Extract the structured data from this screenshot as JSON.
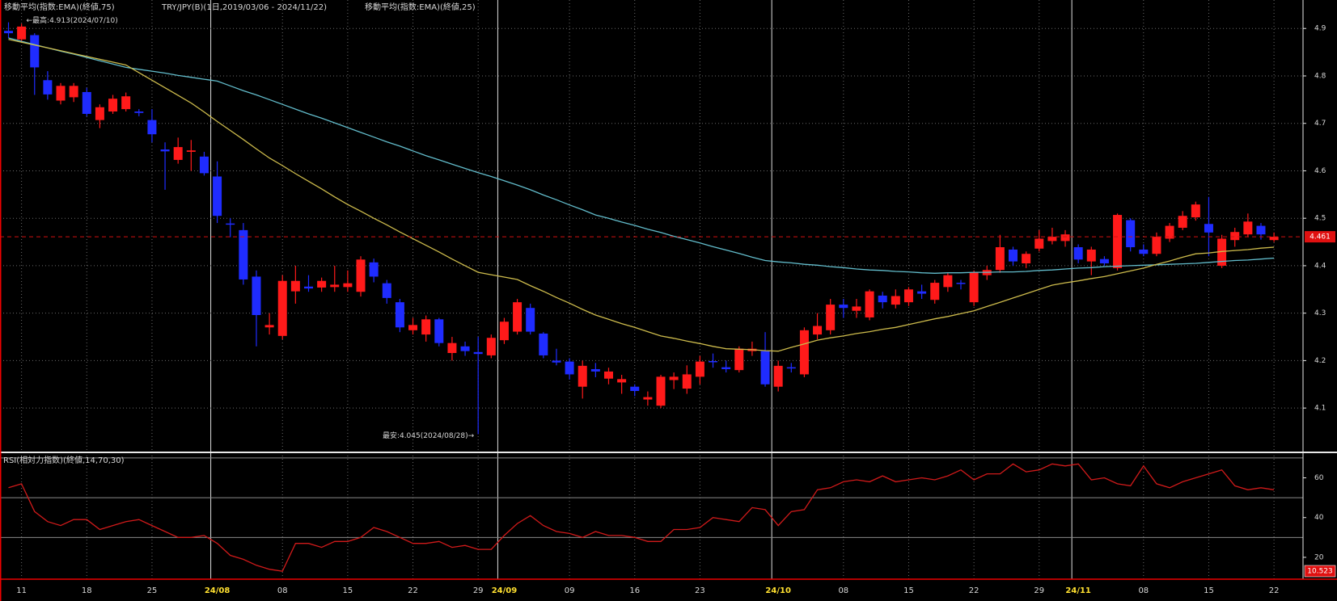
{
  "chart_data": [
    {
      "type": "candlestick",
      "title": "TRY/JPY(B)(1日,2019/03/06 - 2024/11/22)",
      "categories": [
        null,
        "11",
        null,
        null,
        null,
        null,
        "18",
        null,
        null,
        null,
        null,
        "25",
        null,
        null,
        null,
        null,
        "24/08",
        null,
        null,
        null,
        null,
        "08",
        null,
        null,
        null,
        null,
        "15",
        null,
        null,
        null,
        null,
        "22",
        null,
        null,
        null,
        null,
        "29",
        null,
        "24/09",
        null,
        null,
        null,
        null,
        "09",
        null,
        null,
        null,
        null,
        "16",
        null,
        null,
        null,
        null,
        "23",
        null,
        null,
        null,
        null,
        null,
        "24/10",
        null,
        null,
        null,
        null,
        "08",
        null,
        null,
        null,
        null,
        "15",
        null,
        null,
        null,
        null,
        "22",
        null,
        null,
        null,
        null,
        "29",
        null,
        null,
        "24/11",
        null,
        null,
        null,
        null,
        "08",
        null,
        null,
        null,
        null,
        "15",
        null,
        null,
        null,
        null,
        "22"
      ],
      "open": [
        4.895,
        4.877,
        4.886,
        4.791,
        4.748,
        4.755,
        4.766,
        4.707,
        4.725,
        4.73,
        4.725,
        4.707,
        4.645,
        4.623,
        4.64,
        4.63,
        4.588,
        4.489,
        4.475,
        4.377,
        4.27,
        4.252,
        4.346,
        4.356,
        4.354,
        4.355,
        4.355,
        4.345,
        4.407,
        4.363,
        4.323,
        4.264,
        4.255,
        4.287,
        4.216,
        4.23,
        4.218,
        4.211,
        4.243,
        4.261,
        4.311,
        4.257,
        4.2,
        4.198,
        4.145,
        4.182,
        4.162,
        4.154,
        4.145,
        4.118,
        4.105,
        4.159,
        4.141,
        4.166,
        4.199,
        4.186,
        4.18,
        4.22,
        4.22,
        4.145,
        4.186,
        4.171,
        4.255,
        4.264,
        4.318,
        4.305,
        4.291,
        4.337,
        4.318,
        4.323,
        4.346,
        4.328,
        4.355,
        4.364,
        4.323,
        4.38,
        4.391,
        4.434,
        4.405,
        4.436,
        4.452,
        4.452,
        4.439,
        4.409,
        4.414,
        4.395,
        4.496,
        4.434,
        4.425,
        4.457,
        4.48,
        4.502,
        4.488,
        4.4,
        4.454,
        4.466,
        4.484,
        4.454
      ],
      "high": [
        4.913,
        4.91,
        4.89,
        4.81,
        4.785,
        4.785,
        4.775,
        4.74,
        4.76,
        4.765,
        4.73,
        4.73,
        4.66,
        4.67,
        4.665,
        4.64,
        4.62,
        4.5,
        4.49,
        4.39,
        4.3,
        4.38,
        4.4,
        4.38,
        4.375,
        4.4,
        4.39,
        4.42,
        4.415,
        4.37,
        4.33,
        4.29,
        4.295,
        4.29,
        4.25,
        4.24,
        4.25,
        4.255,
        4.29,
        4.33,
        4.32,
        4.26,
        4.225,
        4.205,
        4.2,
        4.195,
        4.185,
        4.17,
        4.15,
        4.135,
        4.17,
        4.175,
        4.19,
        4.21,
        4.215,
        4.2,
        4.23,
        4.24,
        4.26,
        4.2,
        4.195,
        4.27,
        4.3,
        4.33,
        4.33,
        4.33,
        4.35,
        4.345,
        4.35,
        4.355,
        4.36,
        4.37,
        4.385,
        4.37,
        4.39,
        4.4,
        4.465,
        4.44,
        4.43,
        4.475,
        4.48,
        4.475,
        4.445,
        4.44,
        4.42,
        4.51,
        4.5,
        4.445,
        4.47,
        4.49,
        4.515,
        4.535,
        4.545,
        4.465,
        4.48,
        4.51,
        4.49,
        4.47
      ],
      "low": [
        4.88,
        4.87,
        4.76,
        4.75,
        4.74,
        4.745,
        4.715,
        4.69,
        4.72,
        4.725,
        4.715,
        4.66,
        4.56,
        4.615,
        4.6,
        4.59,
        4.49,
        4.46,
        4.36,
        4.23,
        4.255,
        4.245,
        4.32,
        4.345,
        4.345,
        4.345,
        4.345,
        4.335,
        4.365,
        4.32,
        4.26,
        4.255,
        4.24,
        4.23,
        4.2,
        4.21,
        4.045,
        4.205,
        4.235,
        4.255,
        4.255,
        4.205,
        4.19,
        4.16,
        4.12,
        4.165,
        4.15,
        4.13,
        4.125,
        4.105,
        4.1,
        4.14,
        4.13,
        4.15,
        4.185,
        4.175,
        4.175,
        4.21,
        4.145,
        4.135,
        4.175,
        4.165,
        4.245,
        4.255,
        4.29,
        4.29,
        4.285,
        4.31,
        4.31,
        4.315,
        4.33,
        4.32,
        4.345,
        4.35,
        4.315,
        4.37,
        4.385,
        4.4,
        4.395,
        4.43,
        4.445,
        4.44,
        4.405,
        4.38,
        4.4,
        4.39,
        4.43,
        4.42,
        4.42,
        4.45,
        4.475,
        4.495,
        4.42,
        4.395,
        4.44,
        4.46,
        4.455,
        4.45
      ],
      "close": [
        4.89,
        4.904,
        4.818,
        4.761,
        4.779,
        4.779,
        4.72,
        4.734,
        4.752,
        4.757,
        4.722,
        4.677,
        4.641,
        4.65,
        4.643,
        4.595,
        4.505,
        4.487,
        4.371,
        4.296,
        4.275,
        4.368,
        4.368,
        4.352,
        4.368,
        4.36,
        4.363,
        4.413,
        4.377,
        4.332,
        4.27,
        4.275,
        4.287,
        4.237,
        4.237,
        4.22,
        4.214,
        4.248,
        4.282,
        4.323,
        4.261,
        4.211,
        4.196,
        4.171,
        4.189,
        4.177,
        4.177,
        4.161,
        4.136,
        4.123,
        4.166,
        4.166,
        4.171,
        4.198,
        4.198,
        4.182,
        4.225,
        4.225,
        4.15,
        4.189,
        4.184,
        4.264,
        4.273,
        4.318,
        4.311,
        4.314,
        4.346,
        4.323,
        4.336,
        4.35,
        4.341,
        4.364,
        4.38,
        4.362,
        4.386,
        4.391,
        4.439,
        4.409,
        4.425,
        4.457,
        4.461,
        4.466,
        4.413,
        4.434,
        4.405,
        4.507,
        4.439,
        4.425,
        4.461,
        4.484,
        4.505,
        4.529,
        4.47,
        4.457,
        4.471,
        4.493,
        4.466,
        4.461
      ],
      "up_color": "#ff1a1a",
      "down_color": "#1f2cff",
      "series": [
        {
          "name": "移動平均(指数:EMA)(終値,75)",
          "color": "#62bccb",
          "values": [
            4.88,
            4.873,
            4.866,
            4.859,
            4.852,
            4.846,
            4.839,
            4.832,
            4.825,
            4.818,
            4.814,
            4.81,
            4.806,
            4.801,
            4.797,
            4.793,
            4.789,
            4.779,
            4.769,
            4.76,
            4.75,
            4.74,
            4.73,
            4.72,
            4.711,
            4.701,
            4.691,
            4.681,
            4.671,
            4.661,
            4.652,
            4.642,
            4.632,
            4.623,
            4.614,
            4.605,
            4.596,
            4.588,
            4.579,
            4.57,
            4.56,
            4.549,
            4.539,
            4.528,
            4.518,
            4.507,
            4.5,
            4.492,
            4.485,
            4.477,
            4.47,
            4.462,
            4.455,
            4.448,
            4.44,
            4.433,
            4.426,
            4.418,
            4.411,
            4.408,
            4.406,
            4.403,
            4.401,
            4.398,
            4.396,
            4.393,
            4.391,
            4.39,
            4.388,
            4.387,
            4.385,
            4.384,
            4.385,
            4.385,
            4.386,
            4.386,
            4.387,
            4.387,
            4.388,
            4.39,
            4.391,
            4.393,
            4.395,
            4.396,
            4.398,
            4.399,
            4.4,
            4.401,
            4.402,
            4.403,
            4.404,
            4.405,
            4.407,
            4.409,
            4.411,
            4.412,
            4.414,
            4.416
          ]
        },
        {
          "name": "移動平均(指数:EMA)(終値,25)",
          "color": "#cdbb4c",
          "values": [
            4.877,
            4.871,
            4.865,
            4.859,
            4.853,
            4.847,
            4.841,
            4.835,
            4.829,
            4.823,
            4.807,
            4.791,
            4.775,
            4.759,
            4.743,
            4.724,
            4.704,
            4.685,
            4.666,
            4.646,
            4.627,
            4.611,
            4.594,
            4.578,
            4.562,
            4.545,
            4.529,
            4.515,
            4.5,
            4.486,
            4.471,
            4.457,
            4.443,
            4.429,
            4.414,
            4.4,
            4.386,
            4.381,
            4.376,
            4.371,
            4.358,
            4.346,
            4.333,
            4.321,
            4.308,
            4.296,
            4.287,
            4.278,
            4.27,
            4.261,
            4.252,
            4.247,
            4.241,
            4.236,
            4.23,
            4.225,
            4.224,
            4.223,
            4.221,
            4.22,
            4.228,
            4.235,
            4.243,
            4.248,
            4.252,
            4.257,
            4.261,
            4.266,
            4.27,
            4.276,
            4.282,
            4.288,
            4.293,
            4.299,
            4.305,
            4.314,
            4.323,
            4.332,
            4.341,
            4.35,
            4.359,
            4.364,
            4.368,
            4.373,
            4.377,
            4.383,
            4.389,
            4.395,
            4.403,
            4.41,
            4.418,
            4.425,
            4.427,
            4.43,
            4.432,
            4.434,
            4.437,
            4.439
          ]
        }
      ],
      "ylim": [
        4.01,
        4.96
      ],
      "yticks": [
        4.1,
        4.2,
        4.3,
        4.4,
        4.5,
        4.6,
        4.7,
        4.8,
        4.9
      ],
      "grid": true,
      "last_price": 4.461,
      "annotations": [
        "←最高:4.913(2024/07/10)",
        "最安:4.045(2024/08/28)→"
      ]
    },
    {
      "type": "line",
      "series": [
        {
          "name": "RSI(相対力指数)(終値,14,70,30)",
          "color": "#d01a1a",
          "values": [
            55,
            57,
            43,
            38,
            36,
            39,
            39,
            34,
            36,
            38,
            39,
            36,
            33,
            30,
            30,
            31,
            27,
            21,
            19,
            16,
            14,
            13,
            27,
            27,
            25,
            28,
            28,
            30,
            35,
            33,
            30,
            27,
            27,
            28,
            25,
            26,
            24,
            24,
            31,
            37,
            41,
            36,
            33,
            32,
            30,
            33,
            31,
            31,
            30,
            28,
            28,
            34,
            34,
            35,
            40,
            39,
            38,
            45,
            44,
            36,
            43,
            44,
            54,
            55,
            58,
            59,
            58,
            61,
            58,
            59,
            60,
            59,
            61,
            64,
            59,
            62,
            62,
            67,
            63,
            64,
            67,
            66,
            67,
            59,
            60,
            57,
            56,
            66,
            57,
            55,
            58,
            60,
            62,
            64,
            56,
            54,
            55,
            54
          ]
        }
      ],
      "ylim": [
        9,
        72
      ],
      "yticks": [
        20,
        40,
        60
      ],
      "levels": [
        70,
        50,
        30
      ],
      "box_label": 10.523
    }
  ]
}
